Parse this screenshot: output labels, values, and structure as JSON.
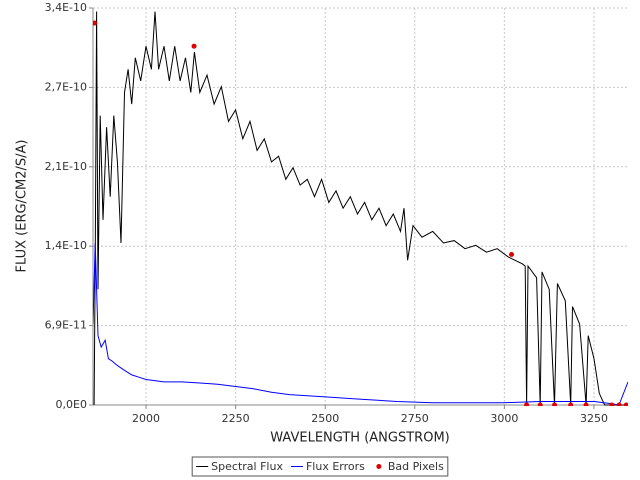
{
  "chart_data": {
    "type": "line",
    "x_label": "WAVELENGTH (ANGSTROM)",
    "y_label": "FLUX (ERG/CM2/S/A)",
    "xlim": [
      1852,
      3345
    ],
    "ylim": [
      0,
      3.43e-10
    ],
    "xticks": [
      2000,
      2250,
      2500,
      2750,
      3000,
      3250
    ],
    "yticks": [
      {
        "value": 0,
        "label": "0,0E0"
      },
      {
        "value": 6.86e-11,
        "label": "6,9E-11"
      },
      {
        "value": 1.372e-10,
        "label": "1,4E-10"
      },
      {
        "value": 2.058e-10,
        "label": "2,1E-10"
      },
      {
        "value": 2.744e-10,
        "label": "2,7E-10"
      },
      {
        "value": 3.43e-10,
        "label": "3,4E-10"
      }
    ],
    "grid": true,
    "legend": "bottom",
    "series": [
      {
        "name": "Spectral Flux",
        "color": "#000000",
        "kind": "line",
        "x": [
          1855,
          1858,
          1862,
          1866,
          1872,
          1880,
          1890,
          1900,
          1910,
          1920,
          1930,
          1940,
          1950,
          1960,
          1970,
          1985,
          2000,
          2015,
          2025,
          2035,
          2050,
          2065,
          2080,
          2095,
          2110,
          2125,
          2135,
          2150,
          2170,
          2190,
          2210,
          2230,
          2250,
          2270,
          2290,
          2310,
          2330,
          2350,
          2370,
          2390,
          2410,
          2430,
          2450,
          2470,
          2490,
          2510,
          2530,
          2550,
          2570,
          2590,
          2610,
          2630,
          2650,
          2670,
          2690,
          2710,
          2720,
          2730,
          2745,
          2770,
          2800,
          2830,
          2860,
          2890,
          2920,
          2950,
          2980,
          3010,
          3030,
          3050,
          3058,
          3062,
          3066,
          3090,
          3100,
          3105,
          3125,
          3140,
          3148,
          3170,
          3185,
          3190,
          3210,
          3228,
          3234,
          3250,
          3265,
          3280,
          3345
        ],
        "values": [
          0,
          1.2e-10,
          3.4e-10,
          1e-10,
          2.5e-10,
          1.6e-10,
          2.4e-10,
          1.8e-10,
          2.5e-10,
          2.1e-10,
          1.4e-10,
          2.7e-10,
          2.9e-10,
          2.6e-10,
          3e-10,
          2.8e-10,
          3.1e-10,
          2.9e-10,
          3.4e-10,
          2.9e-10,
          3.1e-10,
          2.8e-10,
          3.1e-10,
          2.8e-10,
          3e-10,
          2.7e-10,
          3.05e-10,
          2.7e-10,
          2.85e-10,
          2.6e-10,
          2.75e-10,
          2.45e-10,
          2.55e-10,
          2.3e-10,
          2.45e-10,
          2.2e-10,
          2.3e-10,
          2.1e-10,
          2.15e-10,
          1.95e-10,
          2.05e-10,
          1.9e-10,
          1.95e-10,
          1.8e-10,
          1.95e-10,
          1.75e-10,
          1.85e-10,
          1.7e-10,
          1.8e-10,
          1.65e-10,
          1.75e-10,
          1.6e-10,
          1.7e-10,
          1.55e-10,
          1.65e-10,
          1.5e-10,
          1.7e-10,
          1.25e-10,
          1.55e-10,
          1.45e-10,
          1.5e-10,
          1.4e-10,
          1.42e-10,
          1.35e-10,
          1.38e-10,
          1.32e-10,
          1.35e-10,
          1.28e-10,
          1.25e-10,
          1.22e-10,
          1.2e-10,
          0,
          1.2e-10,
          1.1e-10,
          0,
          1.15e-10,
          1e-10,
          0,
          1.05e-10,
          9e-11,
          0,
          8.5e-11,
          7e-11,
          0,
          6e-11,
          4e-11,
          1e-11,
          0,
          0
        ]
      },
      {
        "name": "Flux Errors",
        "color": "#0000ff",
        "kind": "line",
        "x": [
          1852,
          1858,
          1866,
          1875,
          1886,
          1895,
          1905,
          1920,
          1940,
          1960,
          1980,
          2000,
          2050,
          2100,
          2150,
          2200,
          2250,
          2300,
          2350,
          2400,
          2450,
          2500,
          2600,
          2700,
          2800,
          2900,
          3000,
          3100,
          3200,
          3250,
          3300,
          3320,
          3345
        ],
        "values": [
          7e-11,
          1.4e-10,
          6e-11,
          5e-11,
          5.6e-11,
          4e-11,
          3.8e-11,
          3.4e-11,
          3e-11,
          2.6e-11,
          2.4e-11,
          2.2e-11,
          2e-11,
          2e-11,
          1.9e-11,
          1.8e-11,
          1.6e-11,
          1.4e-11,
          1.1e-11,
          9e-12,
          8e-12,
          7e-12,
          5e-12,
          3e-12,
          2e-12,
          2e-12,
          2e-12,
          3e-12,
          3e-12,
          3e-12,
          1e-12,
          0,
          2e-11
        ]
      },
      {
        "name": "Bad Pixels",
        "color": "#e00000",
        "kind": "scatter",
        "x": [
          1856,
          2134,
          3020,
          3062,
          3100,
          3140,
          3185,
          3228,
          3300,
          3320,
          3340
        ],
        "values": [
          3.3e-10,
          3.1e-10,
          1.3e-10,
          0,
          0,
          0,
          0,
          0,
          0,
          0,
          0
        ]
      }
    ]
  }
}
